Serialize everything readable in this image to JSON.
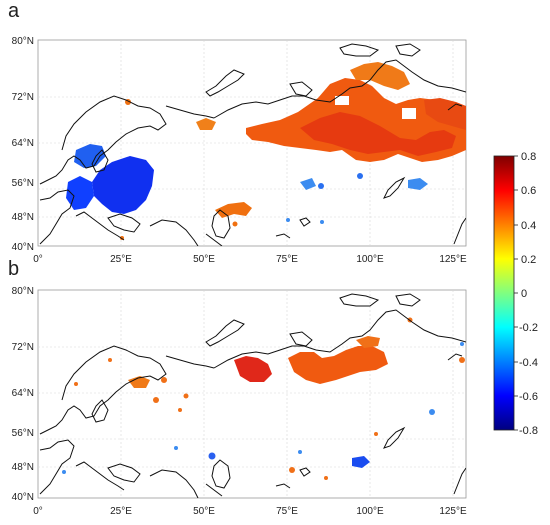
{
  "panels": [
    {
      "label": "a",
      "lat_labels": [
        "80°N",
        "72°N",
        "64°N",
        "56°N",
        "48°N",
        "40°N"
      ],
      "lon_labels": [
        "0°",
        "25°E",
        "50°E",
        "75°E",
        "100°E",
        "125°E"
      ]
    },
    {
      "label": "b",
      "lat_labels": [
        "80°N",
        "72°N",
        "64°N",
        "56°N",
        "48°N",
        "40°N"
      ],
      "lon_labels": [
        "0°",
        "25°E",
        "50°E",
        "75°E",
        "100°E",
        "125°E"
      ]
    }
  ],
  "colorbar": {
    "ticks": [
      "0.8",
      "0.6",
      "0.4",
      "0.2",
      "0",
      "-0.2",
      "-0.4",
      "-0.6",
      "-0.8"
    ],
    "colors": [
      "#00007f",
      "#0000ff",
      "#0080ff",
      "#00ffff",
      "#80ff80",
      "#ffff00",
      "#ff8000",
      "#ff0000",
      "#7f0000"
    ]
  },
  "map_colors": {
    "coast": "#111111",
    "grid": "#d8d8d8",
    "warm": "#f05010",
    "warm_light": "#f59a20",
    "dark_red": "#d01010",
    "cold": "#1040ff",
    "cold_light": "#3c8cf0"
  }
}
